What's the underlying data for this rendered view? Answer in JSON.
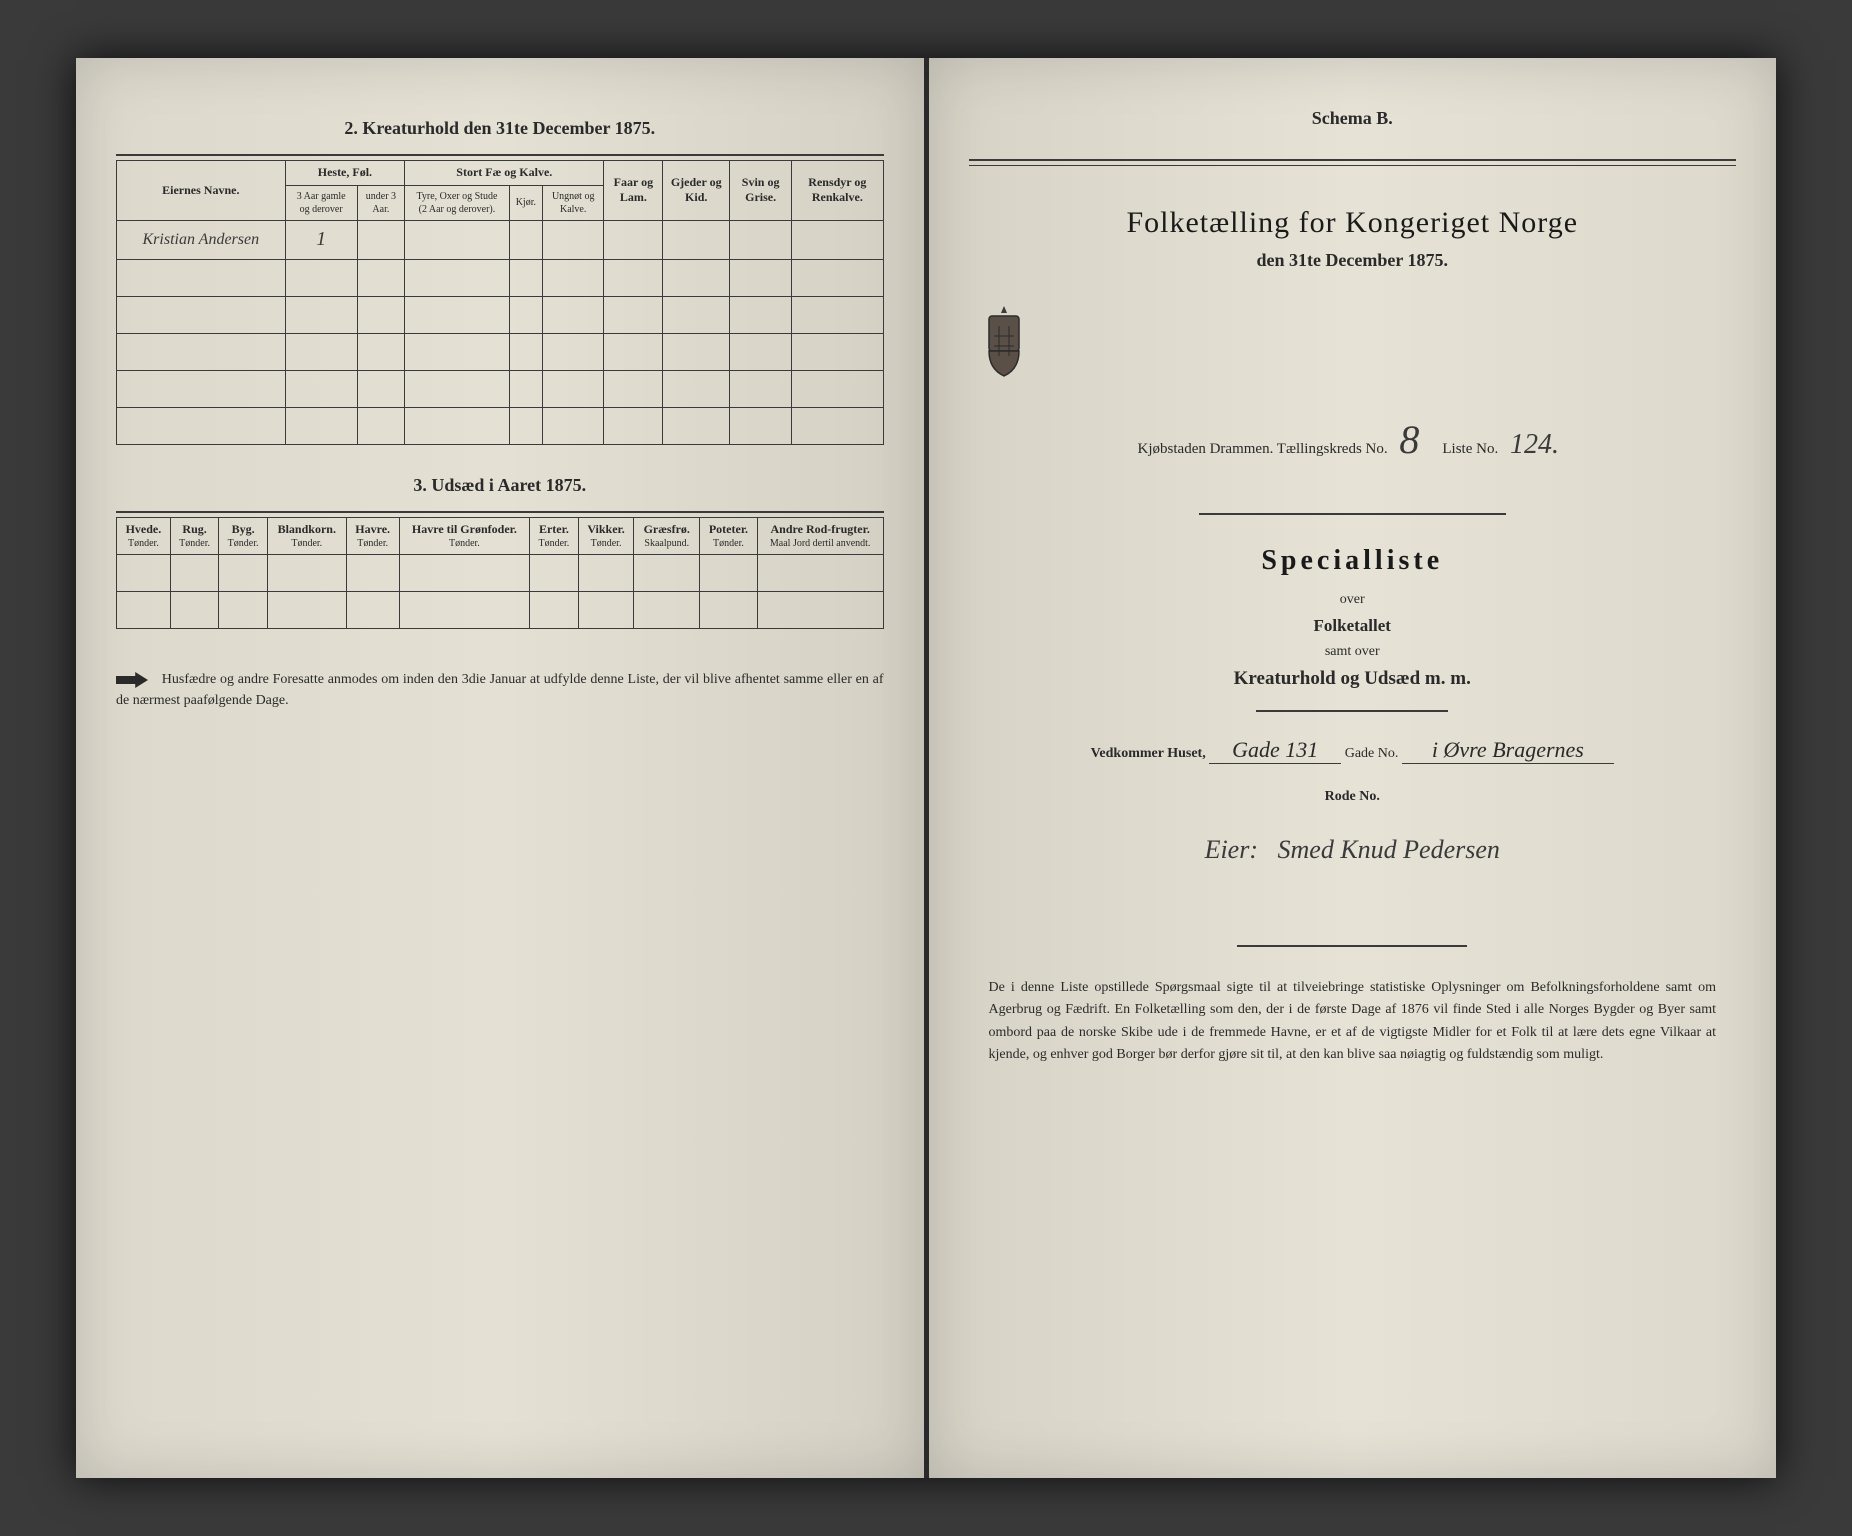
{
  "left": {
    "section2_title": "2. Kreaturhold den 31te December 1875.",
    "section3_title": "3. Udsæd i Aaret 1875.",
    "table2": {
      "headers": {
        "owner": "Eiernes Navne.",
        "heste": "Heste, Føl.",
        "heste_sub1": "3 Aar gamle og derover",
        "heste_sub2": "under 3 Aar.",
        "stort": "Stort Fæ og Kalve.",
        "stort_sub1": "Tyre, Oxer og Stude (2 Aar og derover).",
        "stort_sub2": "Kjør.",
        "stort_sub3": "Ungnøt og Kalve.",
        "faar": "Faar og Lam.",
        "gjeder": "Gjeder og Kid.",
        "svin": "Svin og Grise.",
        "rensdyr": "Rensdyr og Renkalve."
      },
      "row1": {
        "owner": "Kristian Andersen",
        "heste1": "1"
      }
    },
    "table3": {
      "cols": [
        {
          "h": "Hvede.",
          "s": "Tønder."
        },
        {
          "h": "Rug.",
          "s": "Tønder."
        },
        {
          "h": "Byg.",
          "s": "Tønder."
        },
        {
          "h": "Blandkorn.",
          "s": "Tønder."
        },
        {
          "h": "Havre.",
          "s": "Tønder."
        },
        {
          "h": "Havre til Grønfoder.",
          "s": "Tønder."
        },
        {
          "h": "Erter.",
          "s": "Tønder."
        },
        {
          "h": "Vikker.",
          "s": "Tønder."
        },
        {
          "h": "Græsfrø.",
          "s": "Skaalpund."
        },
        {
          "h": "Poteter.",
          "s": "Tønder."
        },
        {
          "h": "Andre Rod-frugter.",
          "s": "Maal Jord dertil anvendt."
        }
      ]
    },
    "footnote": "Husfædre og andre Foresatte anmodes om inden den 3die Januar at udfylde denne Liste, der vil blive afhentet samme eller en af de nærmest paafølgende Dage."
  },
  "right": {
    "schema": "Schema B.",
    "main_title": "Folketælling for Kongeriget Norge",
    "date": "den 31te December 1875.",
    "ident": {
      "prefix": "Kjøbstaden Drammen.   Tællingskreds No.",
      "kreds": "8",
      "mid": "Liste No.",
      "liste": "124."
    },
    "special": "Specialliste",
    "over": "over",
    "folketallet": "Folketallet",
    "samt": "samt over",
    "kreatur": "Kreaturhold og Udsæd m. m.",
    "vedkommer": "Vedkommer Huset,",
    "gade_val": "Gade 131",
    "gade_no": "Gade No.",
    "district": "i Øvre Bragernes",
    "rode": "Rode No.",
    "owner_prefix": "Eier:",
    "owner": "Smed Knud Pedersen",
    "bottom": "De i denne Liste opstillede Spørgsmaal sigte til at tilveiebringe statistiske Oplysninger om Befolkningsforholdene samt om Agerbrug og Fædrift. En Folketælling som den, der i de første Dage af 1876 vil finde Sted i alle Norges Bygder og Byer samt ombord paa de norske Skibe ude i de fremmede Havne, er et af de vigtigste Midler for et Folk til at lære dets egne Vilkaar at kjende, og enhver god Borger bør derfor gjøre sit til, at den kan blive saa nøiagtig og fuldstændig som muligt."
  }
}
